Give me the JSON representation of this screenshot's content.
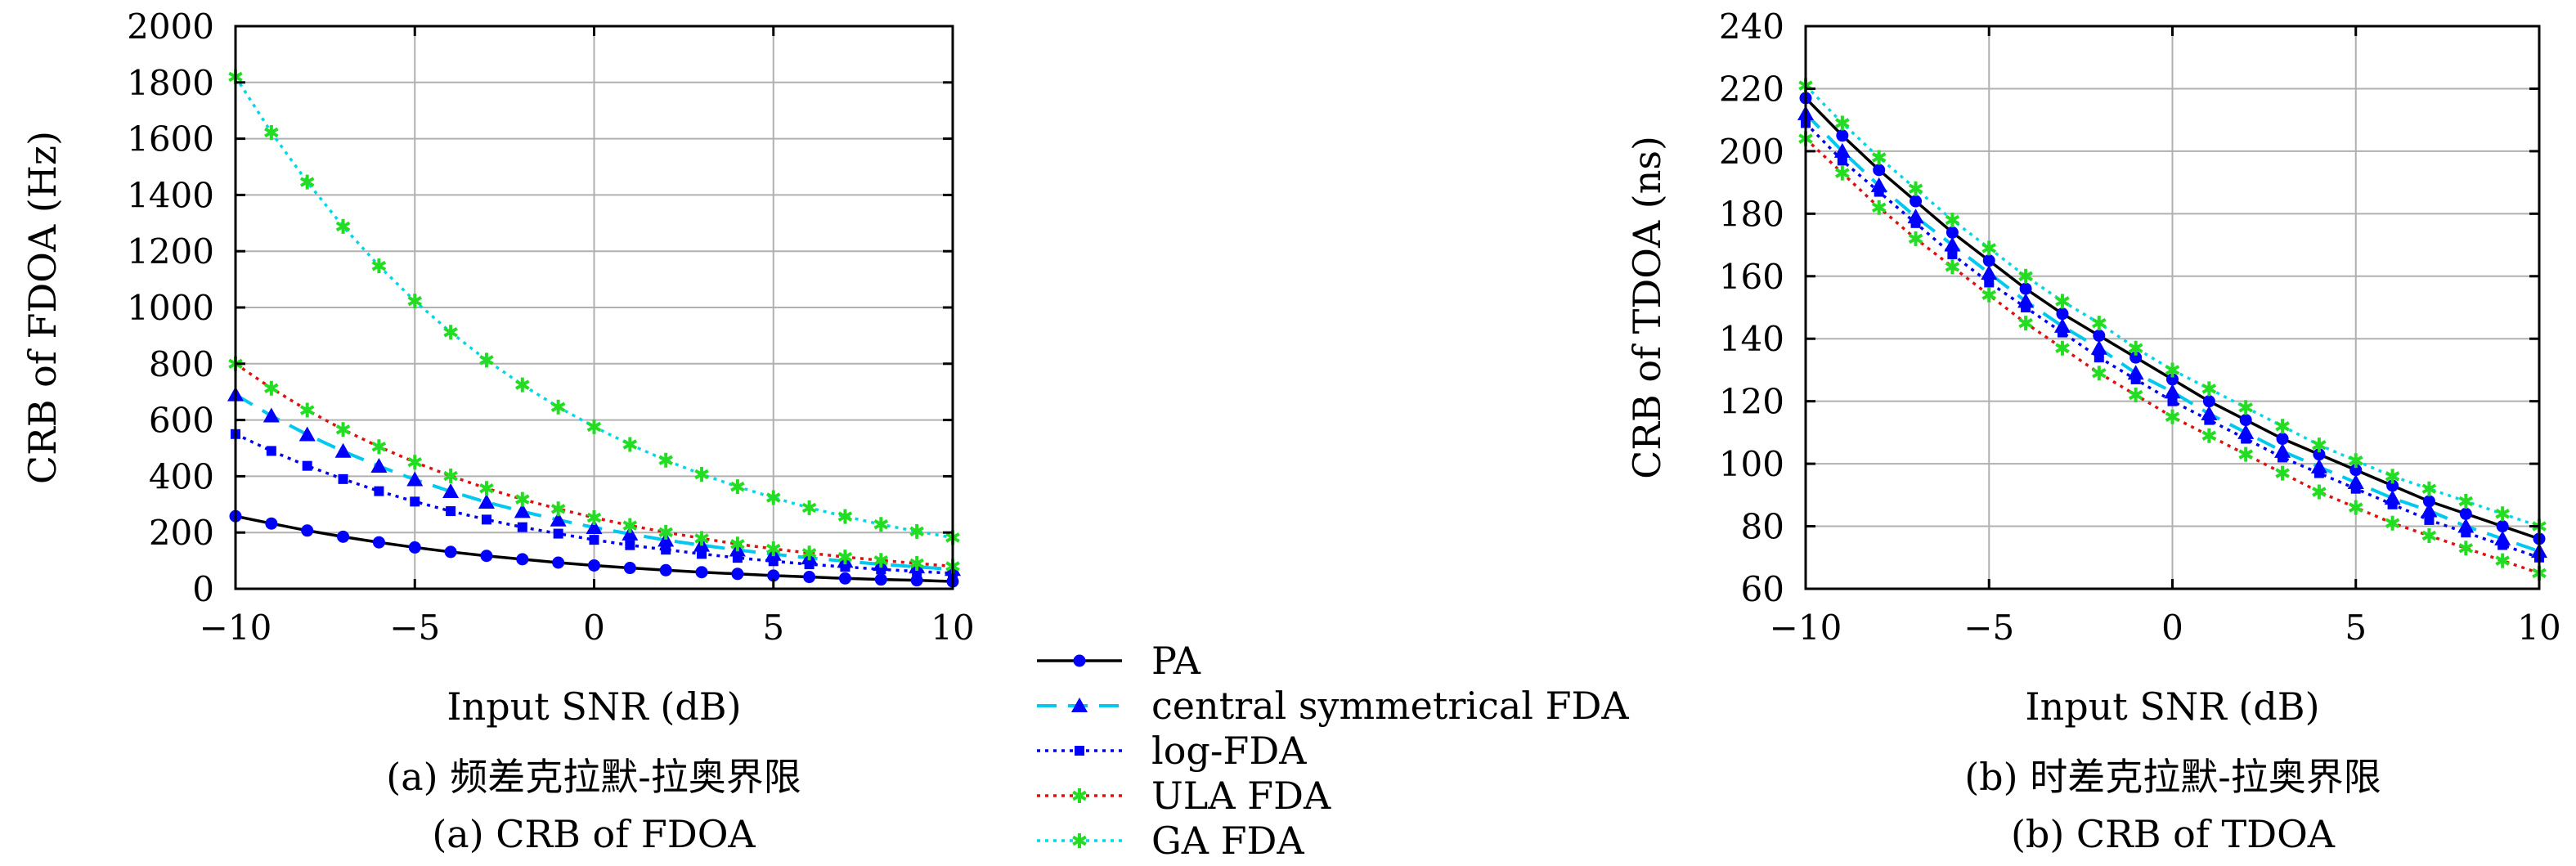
{
  "chart_data": [
    {
      "type": "line",
      "xlabel": "Input SNR (dB)",
      "ylabel": "CRB of FDOA (Hz)",
      "caption_cn": "(a) 频差克拉默-拉奥界限",
      "caption_en": "(a) CRB of FDOA",
      "xlim": [
        -10,
        10
      ],
      "ylim": [
        0,
        2000
      ],
      "xticks": [
        -10,
        -5,
        0,
        5,
        10
      ],
      "xtick_labels": [
        "−10",
        "−5",
        "0",
        "5",
        "10"
      ],
      "yticks": [
        0,
        200,
        400,
        600,
        800,
        1000,
        1200,
        1400,
        1600,
        1800,
        2000
      ],
      "ytick_labels": [
        "0",
        "200",
        "400",
        "600",
        "800",
        "1000",
        "1200",
        "1400",
        "1600",
        "1800",
        "2000"
      ],
      "grid": true,
      "x": [
        -10,
        -9,
        -8,
        -7,
        -6,
        -5,
        -4,
        -3,
        -2,
        -1,
        0,
        1,
        2,
        3,
        4,
        5,
        6,
        7,
        8,
        9,
        10
      ],
      "series": [
        {
          "key": "pa",
          "values": [
            258,
            232,
            207,
            185,
            165,
            147,
            131,
            117,
            105,
            93,
            83,
            74,
            66,
            59,
            53,
            47,
            42,
            37,
            33,
            30,
            26
          ]
        },
        {
          "key": "csfda",
          "values": [
            690,
            615,
            548,
            489,
            436,
            388,
            346,
            308,
            275,
            245,
            218,
            195,
            173,
            155,
            138,
            123,
            110,
            98,
            87,
            78,
            69
          ]
        },
        {
          "key": "logfda",
          "values": [
            550,
            490,
            437,
            390,
            347,
            310,
            276,
            246,
            219,
            196,
            174,
            155,
            139,
            124,
            110,
            98,
            87,
            78,
            69,
            62,
            55
          ]
        },
        {
          "key": "ulafda",
          "values": [
            800,
            713,
            635,
            566,
            505,
            450,
            401,
            357,
            318,
            284,
            253,
            225,
            201,
            179,
            159,
            142,
            127,
            113,
            101,
            90,
            80
          ]
        },
        {
          "key": "gafda",
          "values": [
            1820,
            1622,
            1446,
            1288,
            1148,
            1023,
            912,
            813,
            725,
            646,
            576,
            513,
            457,
            407,
            363,
            324,
            288,
            257,
            229,
            204,
            182
          ]
        }
      ]
    },
    {
      "type": "line",
      "xlabel": "Input SNR (dB)",
      "ylabel": "CRB of TDOA (ns)",
      "caption_cn": "(b) 时差克拉默-拉奥界限",
      "caption_en": "(b) CRB of TDOA",
      "xlim": [
        -10,
        10
      ],
      "ylim": [
        60,
        240
      ],
      "xticks": [
        -10,
        -5,
        0,
        5,
        10
      ],
      "xtick_labels": [
        "−10",
        "−5",
        "0",
        "5",
        "10"
      ],
      "yticks": [
        60,
        80,
        100,
        120,
        140,
        160,
        180,
        200,
        220,
        240
      ],
      "ytick_labels": [
        "60",
        "80",
        "100",
        "120",
        "140",
        "160",
        "180",
        "200",
        "220",
        "240"
      ],
      "grid": true,
      "x": [
        -10,
        -9,
        -8,
        -7,
        -6,
        -5,
        -4,
        -3,
        -2,
        -1,
        0,
        1,
        2,
        3,
        4,
        5,
        6,
        7,
        8,
        9,
        10
      ],
      "series": [
        {
          "key": "pa",
          "values": [
            217,
            205,
            194,
            184,
            174,
            165,
            156,
            148,
            141,
            134,
            127,
            120,
            114,
            108,
            103,
            98,
            93,
            88,
            84,
            80,
            76
          ]
        },
        {
          "key": "csfda",
          "values": [
            212,
            200,
            189,
            179,
            170,
            161,
            152,
            144,
            137,
            129,
            123,
            116,
            110,
            104,
            99,
            94,
            89,
            85,
            80,
            76,
            72
          ]
        },
        {
          "key": "logfda",
          "values": [
            209,
            197,
            187,
            177,
            167,
            158,
            150,
            142,
            134,
            127,
            120,
            114,
            108,
            102,
            97,
            92,
            87,
            82,
            78,
            74,
            70
          ]
        },
        {
          "key": "ulafda",
          "values": [
            204,
            193,
            182,
            172,
            163,
            154,
            145,
            137,
            129,
            122,
            115,
            109,
            103,
            97,
            91,
            86,
            81,
            77,
            73,
            69,
            65
          ]
        },
        {
          "key": "gafda",
          "values": [
            221,
            209,
            198,
            188,
            178,
            169,
            160,
            152,
            145,
            137,
            130,
            124,
            118,
            112,
            106,
            101,
            96,
            92,
            88,
            84,
            80
          ]
        }
      ]
    }
  ],
  "legend": [
    {
      "key": "pa",
      "label": "PA",
      "color": "#0000cc",
      "dash": "",
      "marker": "circle"
    },
    {
      "key": "csfda",
      "label": "central symmetrical FDA",
      "color": "#00c8ee",
      "dash": "24,14",
      "marker": "triangle"
    },
    {
      "key": "logfda",
      "label": "log-FDA",
      "color": "#0000ee",
      "dash": "4,6",
      "marker": "square"
    },
    {
      "key": "ulafda",
      "label": "ULA FDA",
      "color": "#dd1111",
      "dash": "4,6",
      "marker": "star"
    },
    {
      "key": "gafda",
      "label": "GA FDA",
      "color": "#00d8e8",
      "dash": "4,6",
      "marker": "star"
    }
  ],
  "marker_colors": {
    "pa": "#0000ff",
    "csfda": "#0000ff",
    "logfda": "#0000ff",
    "ulafda": "#22dd22",
    "gafda": "#22dd22"
  },
  "line_color_pa": "#000000"
}
